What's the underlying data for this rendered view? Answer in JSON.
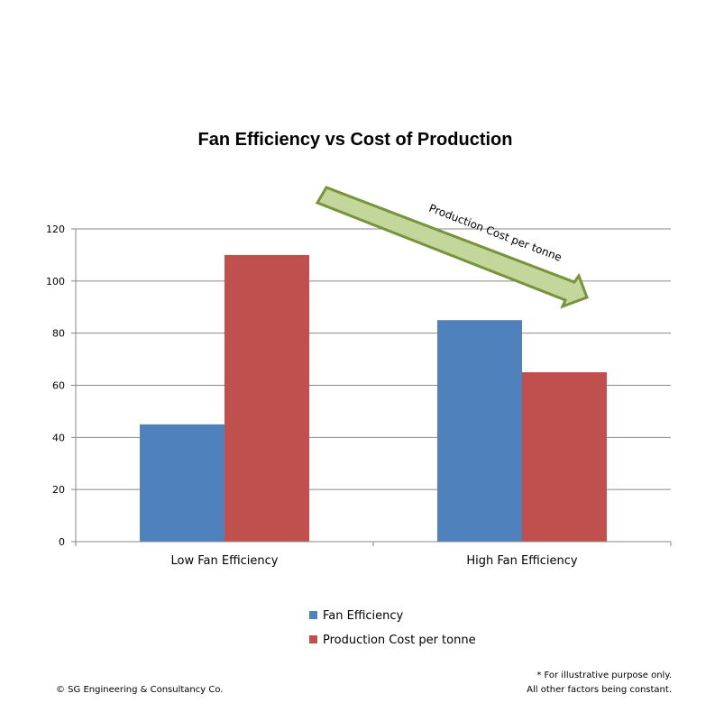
{
  "chart_data": {
    "type": "bar",
    "title": "Fan Efficiency vs Cost of Production",
    "categories": [
      "Low Fan Efficiency",
      "High Fan Efficiency"
    ],
    "series": [
      {
        "name": "Fan Efficiency",
        "values": [
          45,
          85
        ],
        "color": "#4f81bd"
      },
      {
        "name": "Production Cost per tonne",
        "values": [
          110,
          65
        ],
        "color": "#c0504d"
      }
    ],
    "xlabel": "",
    "ylabel": "",
    "ylim": [
      0,
      120
    ],
    "yticks": [
      0,
      20,
      40,
      60,
      80,
      100,
      120
    ],
    "grid": true,
    "legend_position": "bottom",
    "annotation": {
      "text": "Production Cost per tonne",
      "fill_color": "#c3d69b",
      "stroke_color": "#77933c"
    }
  },
  "footer": {
    "copyright": "© SG Engineering & Consultancy Co.",
    "note_line1": "* For illustrative purpose only.",
    "note_line2": "All other factors being constant."
  }
}
